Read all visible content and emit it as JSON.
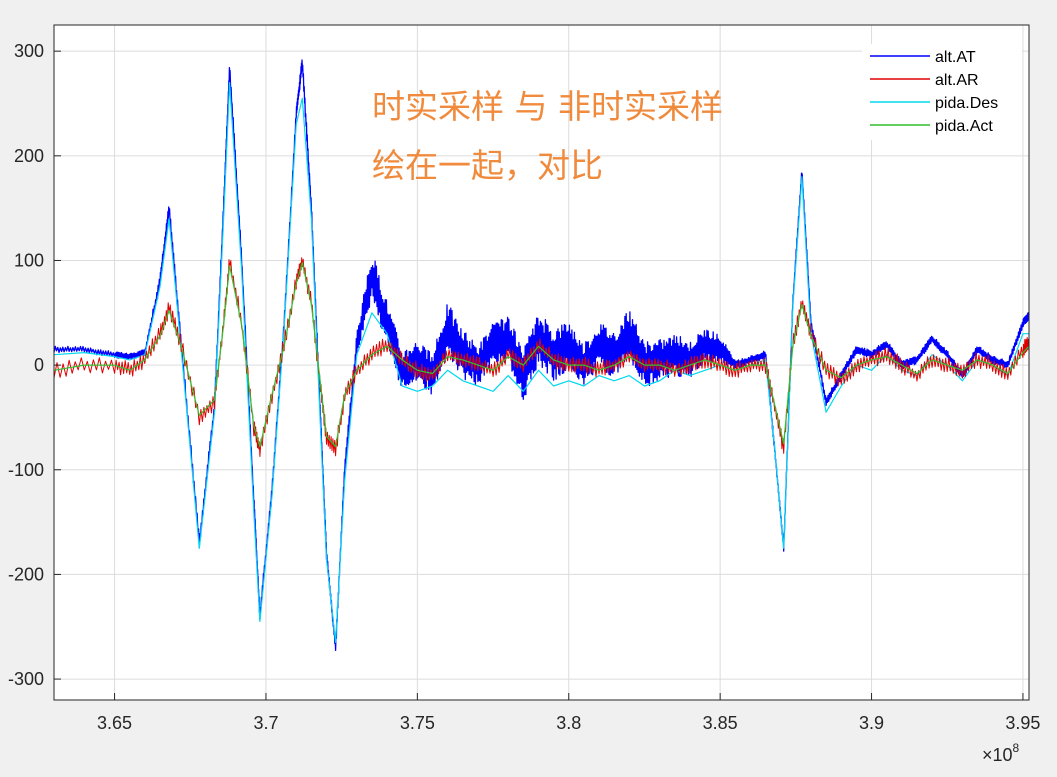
{
  "chart_data": {
    "type": "line",
    "title": "",
    "xlabel": "",
    "ylabel": "",
    "xlim": [
      363000000,
      395200000
    ],
    "ylim": [
      -320,
      325
    ],
    "x_exponent_label": "×10^8",
    "x_exponent_base": "×10",
    "x_exponent_power": "8",
    "xticks": [
      3.65,
      3.7,
      3.75,
      3.8,
      3.85,
      3.9,
      3.95
    ],
    "xtick_labels": [
      "3.65",
      "3.7",
      "3.75",
      "3.8",
      "3.85",
      "3.9",
      "3.95"
    ],
    "yticks": [
      300,
      200,
      100,
      0,
      -100,
      -200,
      -300
    ],
    "ytick_labels": [
      "300",
      "200",
      "100",
      "0",
      "-100",
      "-200",
      "-300"
    ],
    "grid": true,
    "legend_position": "top-right",
    "annotations": [
      {
        "text": "时实采样 与 非时实采样"
      },
      {
        "text": "绘在一起，对比"
      }
    ],
    "series": [
      {
        "name": "alt.AT",
        "color": "#0000ff",
        "style": "noisy-band",
        "x": [
          363000000,
          364000000,
          365000000,
          365500000,
          366000000,
          366500000,
          366800000,
          367200000,
          367800000,
          368300000,
          368600000,
          368800000,
          369200000,
          369600000,
          369800000,
          370200000,
          370600000,
          371000000,
          371200000,
          371500000,
          371800000,
          372000000,
          372300000,
          372600000,
          373000000,
          373500000,
          374000000,
          374500000,
          375000000,
          375500000,
          376000000,
          376500000,
          377000000,
          377500000,
          378000000,
          378500000,
          379000000,
          379500000,
          380000000,
          380500000,
          381000000,
          381500000,
          382000000,
          382500000,
          383000000,
          383500000,
          384000000,
          384500000,
          385000000,
          385500000,
          386000000,
          386500000,
          386800000,
          387100000,
          387400000,
          387700000,
          388000000,
          388500000,
          389000000,
          389500000,
          390000000,
          390500000,
          391000000,
          391500000,
          392000000,
          392500000,
          393000000,
          393500000,
          394000000,
          394500000,
          395000000,
          395200000
        ],
        "y": [
          15,
          15,
          10,
          8,
          12,
          80,
          150,
          20,
          -170,
          -40,
          150,
          285,
          100,
          -130,
          -240,
          -120,
          40,
          240,
          290,
          150,
          -50,
          -180,
          -270,
          -100,
          20,
          85,
          40,
          -5,
          5,
          -10,
          35,
          10,
          0,
          20,
          25,
          -10,
          25,
          10,
          20,
          0,
          20,
          10,
          30,
          0,
          5,
          10,
          5,
          20,
          15,
          0,
          5,
          10,
          -80,
          -175,
          60,
          185,
          40,
          -35,
          -10,
          15,
          10,
          20,
          0,
          5,
          25,
          10,
          -10,
          15,
          5,
          0,
          40,
          48
        ],
        "noise_amplitude": [
          3,
          3,
          3,
          3,
          3,
          6,
          6,
          6,
          6,
          6,
          6,
          6,
          6,
          6,
          6,
          6,
          6,
          6,
          6,
          6,
          6,
          6,
          6,
          6,
          12,
          25,
          22,
          20,
          20,
          20,
          26,
          24,
          20,
          20,
          22,
          24,
          26,
          26,
          24,
          20,
          22,
          24,
          24,
          22,
          20,
          20,
          18,
          16,
          14,
          4,
          4,
          4,
          4,
          4,
          4,
          4,
          4,
          4,
          4,
          4,
          4,
          4,
          4,
          4,
          4,
          4,
          4,
          4,
          4,
          4,
          4,
          4
        ]
      },
      {
        "name": "alt.AR",
        "color": "#e00000",
        "style": "noisy",
        "x": [
          363000000,
          364000000,
          365000000,
          365500000,
          366000000,
          366500000,
          366800000,
          367200000,
          367800000,
          368300000,
          368600000,
          368800000,
          369200000,
          369600000,
          369800000,
          370200000,
          370600000,
          371000000,
          371200000,
          371500000,
          371800000,
          372000000,
          372300000,
          372600000,
          373000000,
          373500000,
          374000000,
          374500000,
          375000000,
          375500000,
          376000000,
          376500000,
          377000000,
          377500000,
          378000000,
          378500000,
          379000000,
          379500000,
          380000000,
          380500000,
          381000000,
          381500000,
          382000000,
          382500000,
          383000000,
          383500000,
          384000000,
          384500000,
          385000000,
          385500000,
          386000000,
          386500000,
          386800000,
          387100000,
          387400000,
          387700000,
          388000000,
          388500000,
          389000000,
          389500000,
          390000000,
          390500000,
          391000000,
          391500000,
          392000000,
          392500000,
          393000000,
          393500000,
          394000000,
          394500000,
          395000000,
          395200000
        ],
        "y": [
          -5,
          0,
          0,
          -5,
          5,
          30,
          55,
          20,
          -50,
          -35,
          40,
          100,
          40,
          -60,
          -80,
          -30,
          20,
          80,
          100,
          60,
          -20,
          -70,
          -80,
          -30,
          -5,
          10,
          20,
          5,
          -5,
          -10,
          10,
          5,
          0,
          -5,
          10,
          0,
          20,
          5,
          0,
          0,
          -5,
          0,
          10,
          0,
          0,
          -5,
          0,
          5,
          0,
          -5,
          0,
          0,
          -40,
          -80,
          20,
          60,
          30,
          -5,
          -15,
          0,
          5,
          10,
          0,
          -10,
          5,
          0,
          -5,
          5,
          0,
          -10,
          15,
          20
        ],
        "noise_amplitude": 8
      },
      {
        "name": "pida.Des",
        "color": "#00d8f0",
        "style": "line",
        "x": [
          363000000,
          364000000,
          365000000,
          365500000,
          366000000,
          366500000,
          366800000,
          367200000,
          367800000,
          368300000,
          368600000,
          368800000,
          369200000,
          369600000,
          369800000,
          370200000,
          370600000,
          371000000,
          371200000,
          371500000,
          371800000,
          372000000,
          372300000,
          372600000,
          373000000,
          373500000,
          374000000,
          374500000,
          375000000,
          375500000,
          376000000,
          376500000,
          377000000,
          377500000,
          378000000,
          378500000,
          379000000,
          379500000,
          380000000,
          380500000,
          381000000,
          381500000,
          382000000,
          382500000,
          383000000,
          383500000,
          384000000,
          384500000,
          385000000,
          385500000,
          386000000,
          386500000,
          386800000,
          387100000,
          387400000,
          387700000,
          388000000,
          388500000,
          389000000,
          389500000,
          390000000,
          390500000,
          391000000,
          391500000,
          392000000,
          392500000,
          393000000,
          393500000,
          394000000,
          394500000,
          395000000,
          395200000
        ],
        "y": [
          10,
          12,
          8,
          5,
          10,
          75,
          140,
          15,
          -175,
          -45,
          140,
          270,
          90,
          -140,
          -245,
          -125,
          35,
          230,
          255,
          140,
          -60,
          -185,
          -265,
          -110,
          10,
          50,
          30,
          -20,
          -25,
          -20,
          -5,
          -15,
          -20,
          -25,
          -10,
          -25,
          -5,
          -20,
          -15,
          -20,
          -10,
          -15,
          -10,
          -20,
          -15,
          -5,
          -10,
          -5,
          0,
          -5,
          0,
          5,
          -80,
          -175,
          55,
          180,
          30,
          -45,
          -20,
          0,
          -5,
          10,
          -5,
          -10,
          10,
          0,
          -15,
          5,
          0,
          -10,
          30,
          30
        ]
      },
      {
        "name": "pida.Act",
        "color": "#30c030",
        "style": "line",
        "x": [
          363000000,
          364000000,
          365000000,
          365500000,
          366000000,
          366500000,
          366800000,
          367200000,
          367800000,
          368300000,
          368600000,
          368800000,
          369200000,
          369600000,
          369800000,
          370200000,
          370600000,
          371000000,
          371200000,
          371500000,
          371800000,
          372000000,
          372300000,
          372600000,
          373000000,
          373500000,
          374000000,
          374500000,
          375000000,
          375500000,
          376000000,
          376500000,
          377000000,
          377500000,
          378000000,
          378500000,
          379000000,
          379500000,
          380000000,
          380500000,
          381000000,
          381500000,
          382000000,
          382500000,
          383000000,
          383500000,
          384000000,
          384500000,
          385000000,
          385500000,
          386000000,
          386500000,
          386800000,
          387100000,
          387400000,
          387700000,
          388000000,
          388500000,
          389000000,
          389500000,
          390000000,
          390500000,
          391000000,
          391500000,
          392000000,
          392500000,
          393000000,
          393500000,
          394000000,
          394500000,
          395000000,
          395200000
        ],
        "y": [
          -5,
          0,
          0,
          -5,
          5,
          28,
          52,
          18,
          -48,
          -33,
          38,
          95,
          38,
          -58,
          -78,
          -28,
          18,
          78,
          98,
          58,
          -18,
          -68,
          -78,
          -28,
          -5,
          10,
          18,
          5,
          -5,
          -8,
          8,
          5,
          0,
          -5,
          8,
          0,
          18,
          5,
          0,
          0,
          -5,
          0,
          8,
          0,
          0,
          -5,
          0,
          5,
          0,
          -5,
          0,
          0,
          -38,
          -75,
          18,
          58,
          28,
          -5,
          -12,
          0,
          5,
          8,
          0,
          -8,
          5,
          0,
          -5,
          5,
          0,
          -8,
          12,
          18
        ]
      }
    ]
  }
}
